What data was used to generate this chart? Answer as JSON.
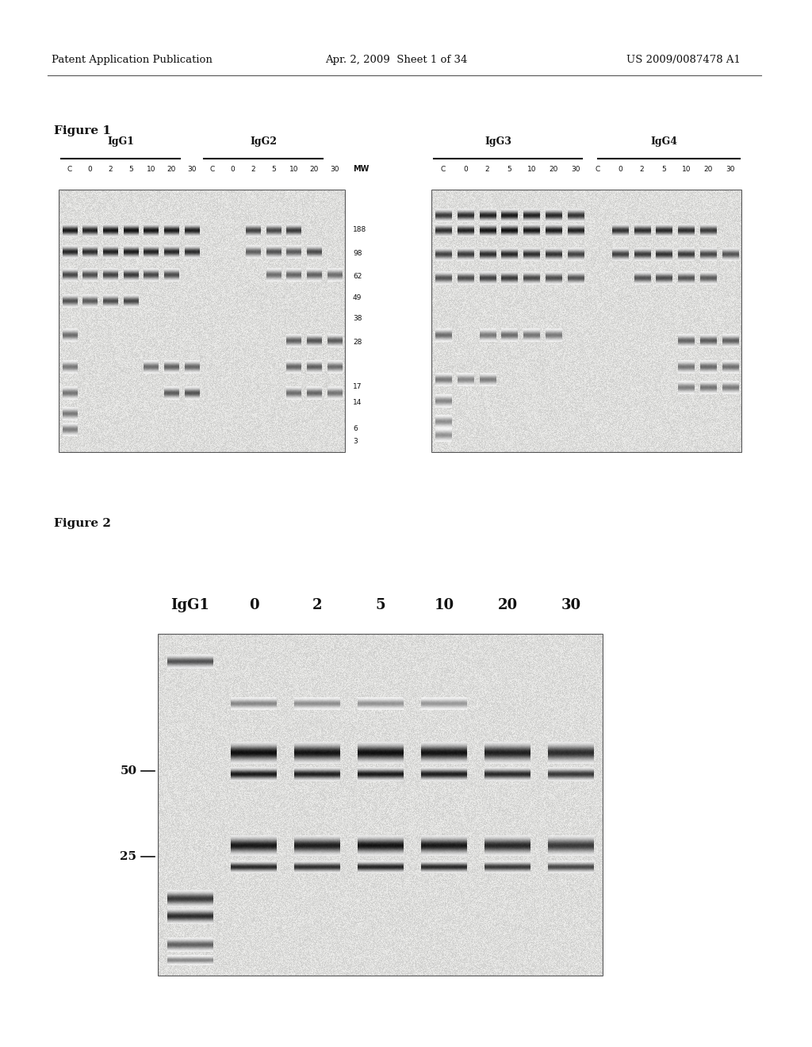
{
  "page_header_left": "Patent Application Publication",
  "page_header_mid": "Apr. 2, 2009  Sheet 1 of 34",
  "page_header_right": "US 2009/0087478 A1",
  "fig1_label": "Figure 1",
  "fig2_label": "Figure 2",
  "fig1_group1_label": "IgG1",
  "fig1_group2_label": "IgG2",
  "fig1_group3_label": "IgG3",
  "fig1_group4_label": "IgG4",
  "fig1_lanes_left": [
    "C",
    "0",
    "2",
    "5",
    "10",
    "20",
    "30",
    "C",
    "0",
    "2",
    "5",
    "10",
    "20",
    "30"
  ],
  "fig1_mw_label": "MW",
  "fig1_mw_values": [
    "188",
    "98",
    "62",
    "49",
    "38",
    "28",
    "17",
    "14",
    "6",
    "3"
  ],
  "fig1_lanes_right": [
    "C",
    "0",
    "2",
    "5",
    "10",
    "20",
    "30",
    "C",
    "0",
    "2",
    "5",
    "10",
    "20",
    "30"
  ],
  "fig2_title": "IgG1",
  "fig2_lanes": [
    "0",
    "2",
    "5",
    "10",
    "20",
    "30"
  ],
  "fig2_mw_left": [
    "50",
    "25"
  ],
  "bg_color": "#ffffff",
  "text_color": "#000000",
  "gel_bg": "#d0ccc0",
  "band_color": "#1a1a1a"
}
